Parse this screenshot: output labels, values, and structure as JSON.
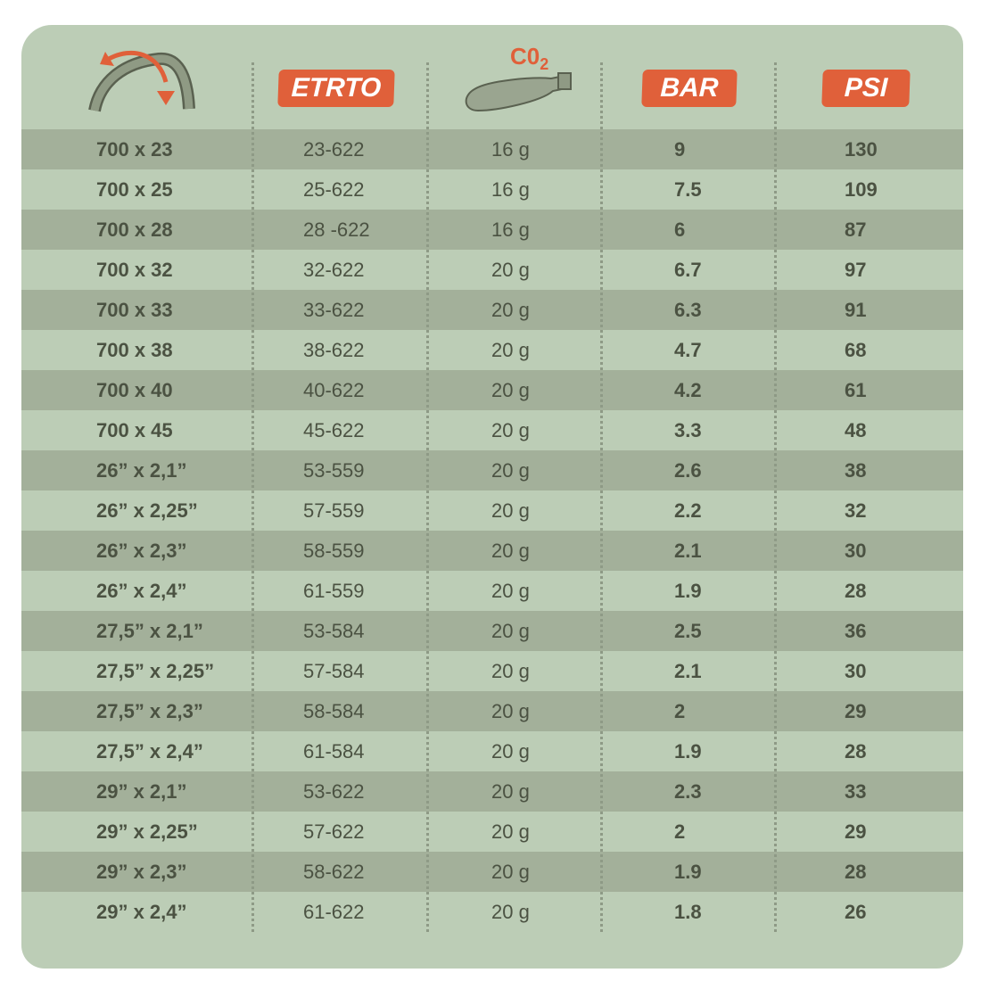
{
  "header": {
    "tire_icon": "tire-width-arrows-icon",
    "etrto": "ETRTO",
    "co2_label": "C0",
    "co2_sub": "2",
    "co2_icon": "co2-cartridge-icon",
    "bar": "BAR",
    "psi": "PSI"
  },
  "colors": {
    "background": "#bccdb6",
    "stripe": "#a3b09a",
    "accent": "#e0603a",
    "text": "#4b5242"
  },
  "rows": [
    {
      "size": "700 x 23",
      "etrto": "23-622",
      "co2": "16 g",
      "bar": "9",
      "psi": "130"
    },
    {
      "size": "700 x 25",
      "etrto": "25-622",
      "co2": "16 g",
      "bar": "7.5",
      "psi": "109"
    },
    {
      "size": "700 x 28",
      "etrto": "28 -622",
      "co2": "16 g",
      "bar": "6",
      "psi": "87"
    },
    {
      "size": "700 x 32",
      "etrto": "32-622",
      "co2": "20 g",
      "bar": "6.7",
      "psi": "97"
    },
    {
      "size": "700 x 33",
      "etrto": "33-622",
      "co2": "20 g",
      "bar": "6.3",
      "psi": "91"
    },
    {
      "size": "700 x 38",
      "etrto": "38-622",
      "co2": "20 g",
      "bar": "4.7",
      "psi": "68"
    },
    {
      "size": "700 x 40",
      "etrto": "40-622",
      "co2": "20 g",
      "bar": "4.2",
      "psi": "61"
    },
    {
      "size": "700 x 45",
      "etrto": "45-622",
      "co2": "20 g",
      "bar": "3.3",
      "psi": "48"
    },
    {
      "size": "26” x 2,1”",
      "etrto": "53-559",
      "co2": "20 g",
      "bar": "2.6",
      "psi": "38"
    },
    {
      "size": "26” x 2,25”",
      "etrto": "57-559",
      "co2": "20 g",
      "bar": "2.2",
      "psi": "32"
    },
    {
      "size": "26” x 2,3”",
      "etrto": "58-559",
      "co2": "20 g",
      "bar": "2.1",
      "psi": "30"
    },
    {
      "size": "26” x 2,4”",
      "etrto": "61-559",
      "co2": "20 g",
      "bar": "1.9",
      "psi": "28"
    },
    {
      "size": "27,5” x 2,1”",
      "etrto": "53-584",
      "co2": "20 g",
      "bar": "2.5",
      "psi": "36"
    },
    {
      "size": "27,5” x 2,25”",
      "etrto": "57-584",
      "co2": "20 g",
      "bar": "2.1",
      "psi": "30"
    },
    {
      "size": "27,5” x 2,3”",
      "etrto": "58-584",
      "co2": "20 g",
      "bar": "2",
      "psi": "29"
    },
    {
      "size": "27,5” x 2,4”",
      "etrto": "61-584",
      "co2": "20 g",
      "bar": "1.9",
      "psi": "28"
    },
    {
      "size": "29” x 2,1”",
      "etrto": "53-622",
      "co2": "20 g",
      "bar": "2.3",
      "psi": "33"
    },
    {
      "size": "29” x 2,25”",
      "etrto": "57-622",
      "co2": "20 g",
      "bar": "2",
      "psi": "29"
    },
    {
      "size": "29” x 2,3”",
      "etrto": "58-622",
      "co2": "20 g",
      "bar": "1.9",
      "psi": "28"
    },
    {
      "size": "29” x 2,4”",
      "etrto": "61-622",
      "co2": "20 g",
      "bar": "1.8",
      "psi": "26"
    }
  ]
}
